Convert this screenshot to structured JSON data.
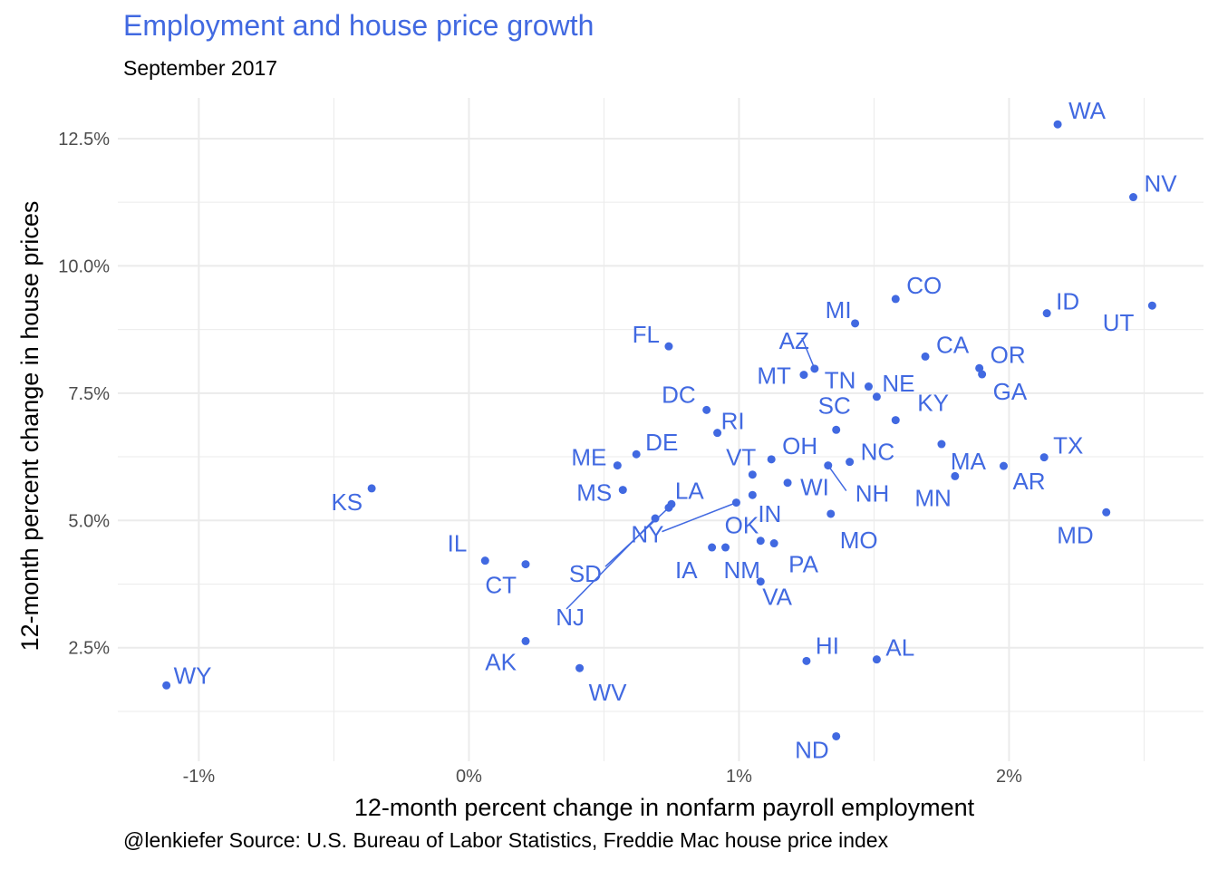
{
  "title": "Employment and house price growth",
  "subtitle": "September 2017",
  "caption": "@lenkiefer Source: U.S. Bureau of Labor Statistics, Freddie Mac house price index",
  "colors": {
    "accent": "#4169E1",
    "grid": "#ebebeb",
    "tick": "#4d4d4d"
  },
  "chart_data": {
    "type": "scatter",
    "xlabel": "12-month percent change in nonfarm payroll employment",
    "ylabel": "12-month percent change in house prices",
    "xlim": [
      -1.3,
      2.72
    ],
    "ylim": [
      0.27,
      13.3
    ],
    "x_ticks": [
      -1,
      0,
      1,
      2
    ],
    "x_tick_labels": [
      "-1%",
      "0%",
      "1%",
      "2%"
    ],
    "y_ticks": [
      2.5,
      5.0,
      7.5,
      10.0,
      12.5
    ],
    "y_tick_labels": [
      "2.5%",
      "5.0%",
      "7.5%",
      "10.0%",
      "12.5%"
    ],
    "grid": true,
    "legend": "none",
    "points": [
      {
        "label": "WA",
        "x": 2.18,
        "y": 12.78
      },
      {
        "label": "NV",
        "x": 2.46,
        "y": 11.35
      },
      {
        "label": "CO",
        "x": 1.58,
        "y": 9.35
      },
      {
        "label": "ID",
        "x": 2.14,
        "y": 9.07
      },
      {
        "label": "UT",
        "x": 2.53,
        "y": 9.22
      },
      {
        "label": "MI",
        "x": 1.43,
        "y": 8.87
      },
      {
        "label": "FL",
        "x": 0.74,
        "y": 8.42
      },
      {
        "label": "AZ",
        "x": 1.28,
        "y": 7.98
      },
      {
        "label": "MT",
        "x": 1.24,
        "y": 7.86
      },
      {
        "label": "CA",
        "x": 1.69,
        "y": 8.22
      },
      {
        "label": "OR",
        "x": 1.89,
        "y": 7.99
      },
      {
        "label": "GA",
        "x": 1.9,
        "y": 7.87
      },
      {
        "label": "TN",
        "x": 1.48,
        "y": 7.63
      },
      {
        "label": "NE",
        "x": 1.51,
        "y": 7.43
      },
      {
        "label": "DC",
        "x": 0.88,
        "y": 7.17
      },
      {
        "label": "SC",
        "x": 1.36,
        "y": 6.78
      },
      {
        "label": "KY",
        "x": 1.58,
        "y": 6.97
      },
      {
        "label": "RI",
        "x": 0.92,
        "y": 6.72
      },
      {
        "label": "OH",
        "x": 1.12,
        "y": 6.2
      },
      {
        "label": "TX",
        "x": 2.13,
        "y": 6.24
      },
      {
        "label": "MA",
        "x": 1.75,
        "y": 6.5
      },
      {
        "label": "ME",
        "x": 0.55,
        "y": 6.08
      },
      {
        "label": "DE",
        "x": 0.62,
        "y": 6.3
      },
      {
        "label": "NC",
        "x": 1.41,
        "y": 6.15
      },
      {
        "label": "VT",
        "x": 1.05,
        "y": 5.9
      },
      {
        "label": "NH",
        "x": 1.33,
        "y": 6.08
      },
      {
        "label": "AR",
        "x": 1.98,
        "y": 6.07
      },
      {
        "label": "MN",
        "x": 1.8,
        "y": 5.87
      },
      {
        "label": "KS",
        "x": -0.36,
        "y": 5.63
      },
      {
        "label": "WI",
        "x": 1.18,
        "y": 5.74
      },
      {
        "label": "MS",
        "x": 0.57,
        "y": 5.6
      },
      {
        "label": "LA",
        "x": 0.75,
        "y": 5.32
      },
      {
        "label": "NY",
        "x": 0.99,
        "y": 5.35
      },
      {
        "label": "SD",
        "x": 0.74,
        "y": 5.25
      },
      {
        "label": "NJ",
        "x": 0.69,
        "y": 5.04
      },
      {
        "label": "IN",
        "x": 1.05,
        "y": 5.5
      },
      {
        "label": "MD",
        "x": 2.36,
        "y": 5.16
      },
      {
        "label": "MO",
        "x": 1.34,
        "y": 5.13
      },
      {
        "label": "OK",
        "x": 1.08,
        "y": 4.6
      },
      {
        "label": "PA",
        "x": 1.13,
        "y": 4.55
      },
      {
        "label": "IL",
        "x": 0.06,
        "y": 4.21
      },
      {
        "label": "CT",
        "x": 0.21,
        "y": 4.14
      },
      {
        "label": "IA",
        "x": 0.9,
        "y": 4.47
      },
      {
        "label": "NM",
        "x": 0.95,
        "y": 4.47
      },
      {
        "label": "VA",
        "x": 1.08,
        "y": 3.8
      },
      {
        "label": "AK",
        "x": 0.21,
        "y": 2.63
      },
      {
        "label": "HI",
        "x": 1.25,
        "y": 2.24
      },
      {
        "label": "AL",
        "x": 1.51,
        "y": 2.27
      },
      {
        "label": "WV",
        "x": 0.41,
        "y": 2.1
      },
      {
        "label": "WY",
        "x": -1.12,
        "y": 1.76
      },
      {
        "label": "ND",
        "x": 1.36,
        "y": 0.76
      }
    ]
  }
}
